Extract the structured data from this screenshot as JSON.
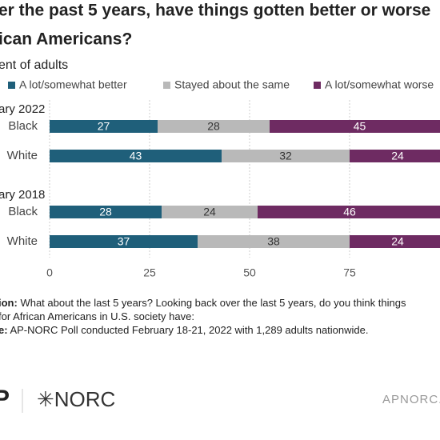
{
  "chart_data": {
    "type": "bar",
    "orientation": "horizontal",
    "stacked": true,
    "title": [
      "er the past 5 years, have things gotten better or worse",
      "ican Americans?"
    ],
    "subtitle": "ent of adults",
    "groups": [
      {
        "label": "ary 2022",
        "categories": [
          "Black",
          "White"
        ]
      },
      {
        "label": "ary 2018",
        "categories": [
          "Black",
          "White"
        ]
      }
    ],
    "series": [
      {
        "name": "A lot/somewhat better",
        "color": "#1f5f7a",
        "label_color": "#ffffff",
        "values": [
          27,
          43,
          28,
          37
        ]
      },
      {
        "name": "Stayed about the same",
        "color": "#b9b9b9",
        "label_color": "#333333",
        "values": [
          28,
          32,
          24,
          38
        ]
      },
      {
        "name": "A lot/somewhat worse",
        "color": "#6e2b62",
        "label_color": "#ffffff",
        "values": [
          45,
          24,
          46,
          24
        ]
      }
    ],
    "xlim": [
      0,
      100
    ],
    "xticks": [
      0,
      25,
      50,
      75
    ],
    "grid": true
  },
  "notes": [
    {
      "label": "ion:",
      "text": " What about the last 5 years? Looking back over the last 5 years, do you think things"
    },
    {
      "label": "",
      "text": "for African Americans in U.S. society have:"
    },
    {
      "label": "e:",
      "text": " AP-NORC Poll conducted February 18-21, 2022 with 1,289 adults nationwide."
    }
  ],
  "footer": {
    "logo_left": "P",
    "logo_right": "✳NORC",
    "url": "APNORC.o"
  }
}
